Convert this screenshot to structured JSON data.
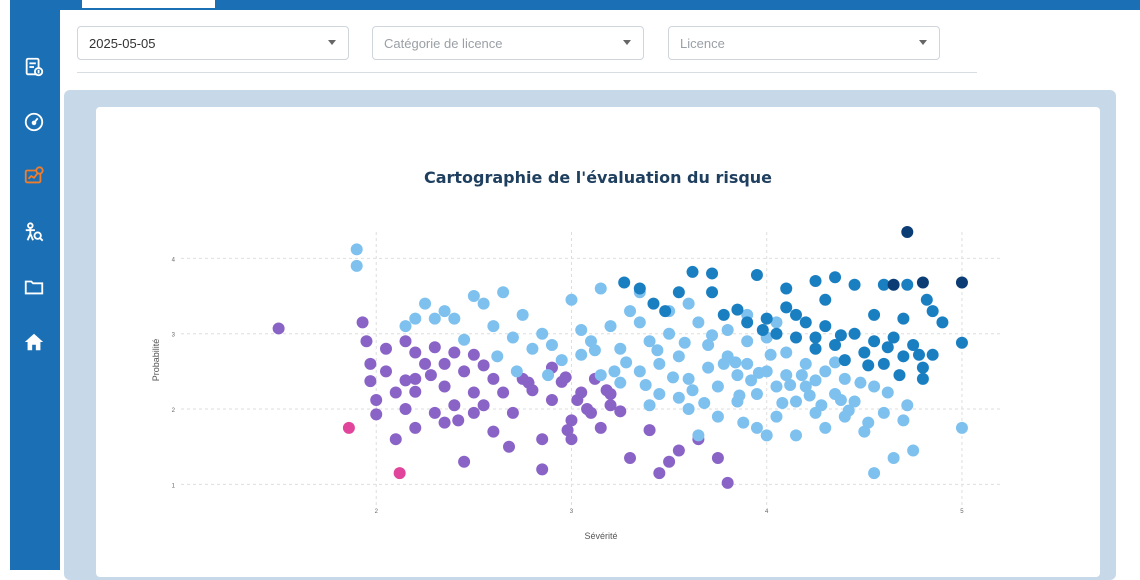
{
  "filters": {
    "date_value": "2025-05-05",
    "category_placeholder": "Catégorie de licence",
    "license_placeholder": "Licence"
  },
  "sidebar": {
    "items": [
      {
        "icon": "report-icon",
        "active": false
      },
      {
        "icon": "dashboard-gauge-icon",
        "active": false
      },
      {
        "icon": "risk-map-icon",
        "active": true
      },
      {
        "icon": "user-search-icon",
        "active": false
      },
      {
        "icon": "folder-icon",
        "active": false
      },
      {
        "icon": "home-icon",
        "active": false
      }
    ]
  },
  "colors": {
    "primary": "#1a6fb5",
    "active_icon": "#f07d2b",
    "panel_bg": "#c7d9e8"
  },
  "chart_data": {
    "type": "scatter",
    "title": "Cartographie de l'évaluation du risque",
    "xlabel": "Sévérité",
    "ylabel": "Probabilité",
    "xticks": [
      "2",
      "3",
      "4",
      "5"
    ],
    "yticks": [
      "1",
      "2",
      "3",
      "4"
    ],
    "xlim": [
      1.0,
      5.2
    ],
    "ylim": [
      0.7,
      4.35
    ],
    "grid": true,
    "series": [
      {
        "color": "#e0459b",
        "points": [
          [
            1.86,
            1.75
          ],
          [
            2.12,
            1.15
          ]
        ]
      },
      {
        "color": "#8a63c6",
        "points": [
          [
            1.5,
            3.07
          ],
          [
            1.93,
            3.15
          ],
          [
            1.95,
            2.9
          ],
          [
            1.97,
            2.6
          ],
          [
            1.97,
            2.37
          ],
          [
            2.0,
            2.12
          ],
          [
            2.0,
            1.93
          ],
          [
            2.05,
            2.8
          ],
          [
            2.05,
            2.5
          ],
          [
            2.1,
            2.22
          ],
          [
            2.1,
            1.6
          ],
          [
            2.15,
            2.9
          ],
          [
            2.15,
            2.38
          ],
          [
            2.15,
            2.0
          ],
          [
            2.2,
            2.75
          ],
          [
            2.2,
            2.4
          ],
          [
            2.2,
            1.75
          ],
          [
            2.25,
            2.6
          ],
          [
            2.3,
            2.82
          ],
          [
            2.3,
            1.95
          ],
          [
            2.35,
            2.6
          ],
          [
            2.35,
            2.3
          ],
          [
            2.35,
            1.82
          ],
          [
            2.4,
            2.75
          ],
          [
            2.4,
            2.05
          ],
          [
            2.45,
            2.5
          ],
          [
            2.45,
            1.3
          ],
          [
            2.5,
            2.72
          ],
          [
            2.5,
            2.22
          ],
          [
            2.5,
            1.95
          ],
          [
            2.55,
            2.58
          ],
          [
            2.6,
            2.4
          ],
          [
            2.6,
            1.7
          ],
          [
            2.65,
            2.22
          ],
          [
            2.7,
            1.95
          ],
          [
            2.75,
            2.4
          ],
          [
            2.8,
            2.25
          ],
          [
            2.85,
            1.6
          ],
          [
            2.85,
            1.2
          ],
          [
            2.9,
            2.55
          ],
          [
            2.9,
            2.12
          ],
          [
            2.95,
            2.36
          ],
          [
            3.0,
            1.85
          ],
          [
            3.0,
            1.6
          ],
          [
            3.05,
            2.22
          ],
          [
            3.08,
            2.0
          ],
          [
            3.1,
            1.95
          ],
          [
            3.12,
            2.4
          ],
          [
            3.15,
            1.75
          ],
          [
            3.18,
            2.25
          ],
          [
            3.2,
            2.05
          ],
          [
            3.25,
            1.97
          ],
          [
            3.3,
            1.35
          ],
          [
            3.4,
            1.72
          ],
          [
            3.45,
            1.15
          ],
          [
            3.5,
            1.3
          ],
          [
            3.55,
            1.45
          ],
          [
            3.65,
            1.6
          ],
          [
            3.75,
            1.35
          ],
          [
            3.8,
            1.02
          ],
          [
            2.2,
            2.23
          ],
          [
            2.28,
            2.45
          ],
          [
            2.55,
            2.05
          ],
          [
            2.78,
            2.35
          ],
          [
            2.97,
            2.42
          ],
          [
            3.03,
            2.12
          ],
          [
            3.2,
            2.2
          ],
          [
            2.42,
            1.85
          ],
          [
            2.68,
            1.5
          ],
          [
            2.98,
            1.72
          ]
        ]
      },
      {
        "color": "#7ec1ee",
        "points": [
          [
            1.9,
            4.12
          ],
          [
            1.9,
            3.9
          ],
          [
            2.15,
            3.1
          ],
          [
            2.2,
            3.2
          ],
          [
            2.25,
            3.4
          ],
          [
            2.3,
            3.2
          ],
          [
            2.35,
            3.3
          ],
          [
            2.4,
            3.2
          ],
          [
            2.45,
            2.92
          ],
          [
            2.5,
            3.5
          ],
          [
            2.55,
            3.4
          ],
          [
            2.6,
            3.1
          ],
          [
            2.65,
            3.55
          ],
          [
            2.7,
            2.95
          ],
          [
            2.75,
            3.25
          ],
          [
            2.8,
            2.8
          ],
          [
            2.85,
            3.0
          ],
          [
            2.9,
            2.85
          ],
          [
            2.95,
            2.65
          ],
          [
            3.0,
            3.45
          ],
          [
            3.05,
            3.05
          ],
          [
            3.05,
            2.72
          ],
          [
            3.1,
            2.9
          ],
          [
            3.15,
            2.45
          ],
          [
            3.2,
            3.1
          ],
          [
            3.25,
            2.8
          ],
          [
            3.3,
            3.3
          ],
          [
            3.35,
            3.15
          ],
          [
            3.35,
            2.5
          ],
          [
            3.4,
            2.9
          ],
          [
            3.45,
            2.6
          ],
          [
            3.45,
            2.2
          ],
          [
            3.5,
            3.0
          ],
          [
            3.55,
            2.7
          ],
          [
            3.6,
            2.4
          ],
          [
            3.6,
            2.0
          ],
          [
            3.65,
            3.15
          ],
          [
            3.7,
            2.85
          ],
          [
            3.7,
            2.55
          ],
          [
            3.75,
            2.3
          ],
          [
            3.75,
            1.9
          ],
          [
            3.8,
            3.05
          ],
          [
            3.8,
            2.7
          ],
          [
            3.85,
            2.45
          ],
          [
            3.85,
            2.1
          ],
          [
            3.9,
            2.9
          ],
          [
            3.9,
            2.6
          ],
          [
            3.95,
            2.2
          ],
          [
            3.95,
            1.75
          ],
          [
            4.0,
            2.95
          ],
          [
            4.0,
            2.5
          ],
          [
            4.05,
            2.3
          ],
          [
            4.05,
            1.9
          ],
          [
            4.1,
            2.75
          ],
          [
            4.1,
            2.45
          ],
          [
            4.15,
            2.1
          ],
          [
            4.15,
            1.65
          ],
          [
            4.2,
            2.6
          ],
          [
            4.2,
            2.3
          ],
          [
            4.25,
            1.95
          ],
          [
            4.3,
            2.5
          ],
          [
            4.3,
            1.75
          ],
          [
            4.35,
            2.2
          ],
          [
            4.4,
            2.4
          ],
          [
            4.4,
            1.9
          ],
          [
            4.45,
            2.1
          ],
          [
            4.5,
            1.7
          ],
          [
            4.55,
            2.3
          ],
          [
            4.55,
            1.15
          ],
          [
            4.6,
            1.95
          ],
          [
            4.65,
            1.35
          ],
          [
            4.7,
            1.85
          ],
          [
            4.75,
            1.45
          ],
          [
            5.0,
            1.75
          ],
          [
            3.35,
            3.55
          ],
          [
            3.15,
            3.6
          ],
          [
            3.5,
            3.3
          ],
          [
            3.6,
            3.4
          ],
          [
            3.9,
            3.25
          ],
          [
            4.05,
            3.15
          ],
          [
            3.25,
            2.35
          ],
          [
            3.55,
            2.15
          ],
          [
            3.65,
            1.65
          ],
          [
            3.78,
            2.6
          ],
          [
            3.92,
            2.38
          ],
          [
            4.08,
            2.08
          ],
          [
            4.22,
            2.18
          ],
          [
            4.35,
            2.62
          ],
          [
            4.48,
            2.35
          ],
          [
            3.4,
            2.05
          ],
          [
            3.52,
            2.42
          ],
          [
            3.68,
            2.08
          ],
          [
            3.88,
            1.82
          ],
          [
            4.02,
            2.72
          ],
          [
            4.18,
            2.45
          ],
          [
            4.28,
            2.05
          ],
          [
            4.42,
            1.98
          ],
          [
            3.28,
            2.62
          ],
          [
            3.44,
            2.78
          ],
          [
            3.58,
            2.88
          ],
          [
            3.72,
            2.98
          ],
          [
            3.84,
            2.62
          ],
          [
            3.96,
            2.48
          ],
          [
            4.12,
            2.32
          ],
          [
            2.62,
            2.7
          ],
          [
            2.72,
            2.5
          ],
          [
            2.88,
            2.45
          ],
          [
            3.12,
            2.78
          ],
          [
            3.22,
            2.5
          ],
          [
            3.38,
            2.32
          ],
          [
            3.62,
            2.25
          ],
          [
            3.86,
            2.18
          ],
          [
            4.0,
            1.65
          ],
          [
            4.25,
            2.38
          ],
          [
            4.38,
            2.12
          ],
          [
            4.52,
            1.82
          ],
          [
            4.62,
            2.22
          ],
          [
            4.72,
            2.05
          ]
        ]
      },
      {
        "color": "#1a7fc1",
        "points": [
          [
            3.27,
            3.68
          ],
          [
            3.35,
            3.6
          ],
          [
            3.42,
            3.4
          ],
          [
            3.48,
            3.3
          ],
          [
            3.55,
            3.55
          ],
          [
            3.62,
            3.82
          ],
          [
            3.72,
            3.8
          ],
          [
            3.72,
            3.55
          ],
          [
            3.78,
            3.25
          ],
          [
            3.85,
            3.32
          ],
          [
            3.9,
            3.15
          ],
          [
            3.95,
            3.78
          ],
          [
            4.0,
            3.2
          ],
          [
            4.05,
            3.0
          ],
          [
            4.1,
            3.6
          ],
          [
            4.1,
            3.35
          ],
          [
            4.15,
            2.95
          ],
          [
            4.2,
            3.15
          ],
          [
            4.25,
            2.8
          ],
          [
            4.3,
            3.45
          ],
          [
            4.3,
            3.1
          ],
          [
            4.35,
            2.85
          ],
          [
            4.4,
            2.65
          ],
          [
            4.45,
            3.65
          ],
          [
            4.45,
            3.0
          ],
          [
            4.5,
            2.75
          ],
          [
            4.55,
            3.25
          ],
          [
            4.55,
            2.9
          ],
          [
            4.6,
            2.6
          ],
          [
            4.65,
            2.95
          ],
          [
            4.7,
            3.2
          ],
          [
            4.7,
            2.7
          ],
          [
            4.75,
            2.85
          ],
          [
            4.8,
            2.55
          ],
          [
            4.85,
            3.3
          ],
          [
            4.9,
            3.15
          ],
          [
            5.0,
            2.88
          ],
          [
            4.25,
            3.7
          ],
          [
            4.35,
            3.75
          ],
          [
            4.6,
            3.65
          ],
          [
            4.72,
            3.65
          ],
          [
            4.82,
            3.45
          ],
          [
            4.25,
            2.95
          ],
          [
            4.38,
            2.98
          ],
          [
            4.52,
            2.58
          ],
          [
            4.78,
            2.72
          ],
          [
            4.15,
            3.25
          ],
          [
            4.62,
            2.82
          ],
          [
            4.85,
            2.72
          ],
          [
            3.98,
            3.05
          ],
          [
            4.68,
            2.45
          ],
          [
            4.8,
            2.4
          ]
        ]
      },
      {
        "color": "#0b3d74",
        "points": [
          [
            4.72,
            4.35
          ],
          [
            4.65,
            3.65
          ],
          [
            4.8,
            3.68
          ],
          [
            5.0,
            3.68
          ]
        ]
      }
    ]
  }
}
